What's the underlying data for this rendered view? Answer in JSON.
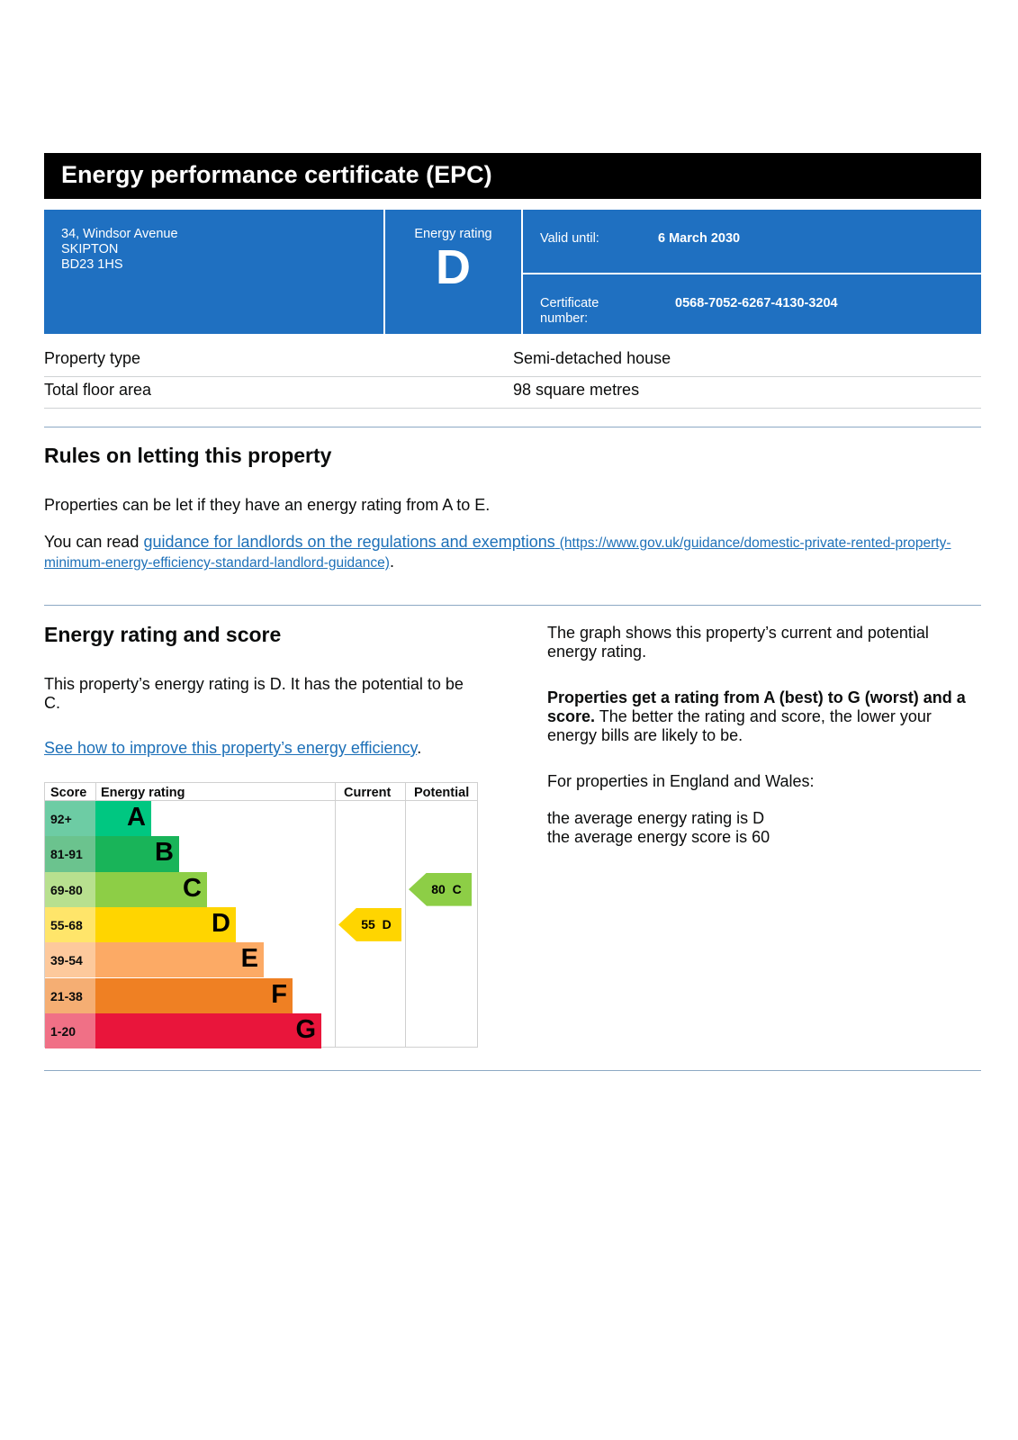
{
  "header": {
    "title": "Energy performance certificate (EPC)"
  },
  "address": [
    "34, Windsor Avenue",
    "SKIPTON",
    "BD23 1HS"
  ],
  "rating_box": {
    "label": "Energy rating",
    "value": "D"
  },
  "valid": {
    "label": "Valid until:",
    "value": "6 March 2030"
  },
  "certificate": {
    "label_1": "Certificate",
    "label_2": "number:",
    "value": "0568-7052-6267-4130-3204"
  },
  "property": [
    {
      "label": "Property type",
      "value": "Semi-detached house"
    },
    {
      "label": "Total floor area",
      "value": "98 square metres"
    }
  ],
  "letting": {
    "heading": "Rules on letting this property",
    "para": "Properties can be let if they have an energy rating from A to E.",
    "read_prefix": "You can read ",
    "link_text": "guidance for landlords on the regulations and exemptions",
    "link_url": "(https://www.gov.uk/guidance/domestic-private-rented-property-minimum-energy-efficiency-standard-landlord-guidance)",
    "suffix": "."
  },
  "score_section": {
    "heading": "Energy rating and score",
    "para": "This property’s energy rating is D. It has the potential to be C.",
    "link": "See how to improve this property’s energy efficiency",
    "link_suffix": ".",
    "right_1": "The graph shows this property’s current and potential energy rating.",
    "right_2_bold": "Properties get a rating from A (best) to G (worst) and a score.",
    "right_2": " The better the rating and score, the lower your energy bills are likely to be.",
    "right_3": "For properties in England and Wales:",
    "right_4": "the average energy rating is D",
    "right_5": "the average energy score is 60"
  },
  "chart_data": {
    "type": "table",
    "headers": [
      "Score",
      "Energy rating",
      "Current",
      "Potential"
    ],
    "bands": [
      {
        "score": "92+",
        "letter": "A",
        "color": "#00c781",
        "score_color": "#6dcca4"
      },
      {
        "score": "81-91",
        "letter": "B",
        "color": "#19b459",
        "score_color": "#6bc38e"
      },
      {
        "score": "69-80",
        "letter": "C",
        "color": "#8dce46",
        "score_color": "#b8e08f"
      },
      {
        "score": "55-68",
        "letter": "D",
        "color": "#ffd500",
        "score_color": "#ffe56a"
      },
      {
        "score": "39-54",
        "letter": "E",
        "color": "#fcaa65",
        "score_color": "#fdc99c"
      },
      {
        "score": "21-38",
        "letter": "F",
        "color": "#ef8023",
        "score_color": "#f5ae73"
      },
      {
        "score": "1-20",
        "letter": "G",
        "color": "#e9153b",
        "score_color": "#f07086"
      }
    ],
    "current": {
      "score": 55,
      "letter": "D",
      "label": "55  D",
      "color": "#ffd500"
    },
    "potential": {
      "score": 80,
      "letter": "C",
      "label": "80  C",
      "color": "#8dce46"
    }
  }
}
